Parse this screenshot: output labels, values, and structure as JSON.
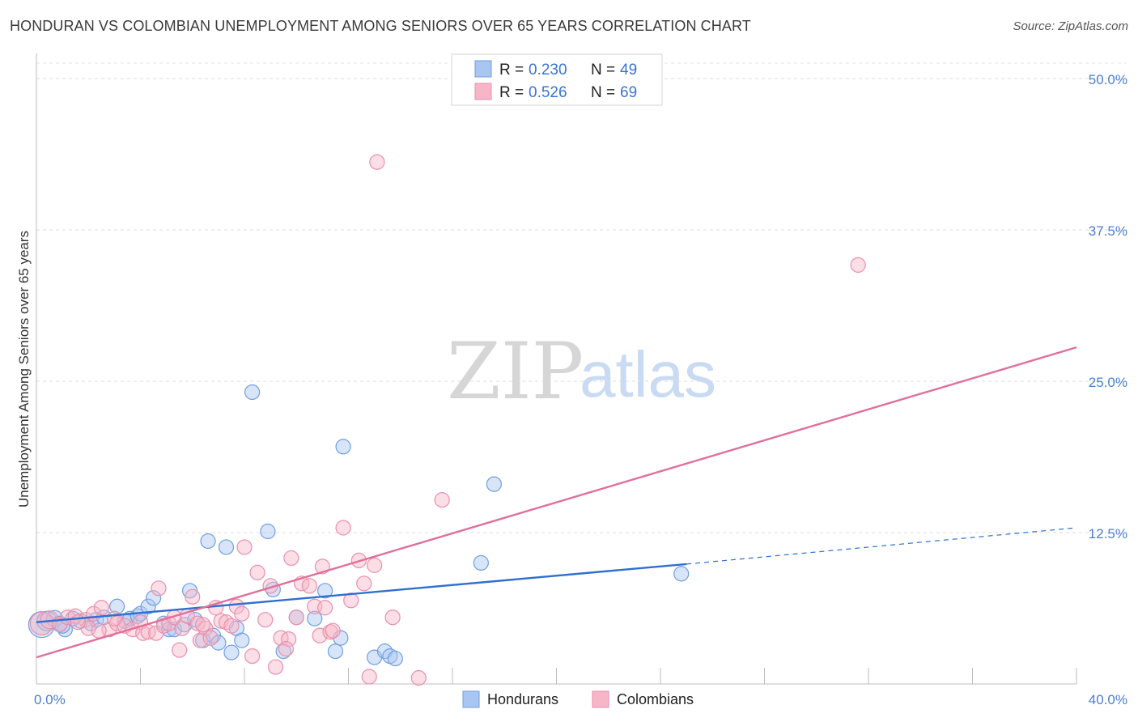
{
  "title": "HONDURAN VS COLOMBIAN UNEMPLOYMENT AMONG SENIORS OVER 65 YEARS CORRELATION CHART",
  "source": "Source: ZipAtlas.com",
  "watermark": {
    "zip": "ZIP",
    "atlas": "atlas"
  },
  "legend": {
    "rows": [
      {
        "r_label": "R =",
        "r_value": "0.230",
        "n_label": "N =",
        "n_value": "49",
        "color": "#a9c6f2"
      },
      {
        "r_label": "R =",
        "r_value": "0.526",
        "n_label": "N =",
        "n_value": "69",
        "color": "#f7b6c8"
      }
    ]
  },
  "bottom_legend": [
    {
      "label": "Hondurans",
      "color": "#a9c6f2"
    },
    {
      "label": "Colombians",
      "color": "#f7b6c8"
    }
  ],
  "chart_data": {
    "type": "scatter",
    "title": "HONDURAN VS COLOMBIAN UNEMPLOYMENT AMONG SENIORS OVER 65 YEARS CORRELATION CHART",
    "xlabel": "",
    "ylabel": "Unemployment Among Seniors over 65 years",
    "xlim": [
      0,
      40
    ],
    "ylim": [
      0,
      50
    ],
    "x_tick_labels": [
      {
        "value": 0,
        "label": "0.0%"
      },
      {
        "value": 40,
        "label": "40.0%"
      }
    ],
    "y_tick_labels": [
      {
        "value": 12.5,
        "label": "12.5%"
      },
      {
        "value": 25,
        "label": "25.0%"
      },
      {
        "value": 37.5,
        "label": "37.5%"
      },
      {
        "value": 50,
        "label": "50.0%"
      }
    ],
    "series": [
      {
        "name": "Hondurans",
        "color": "#a9c6f2",
        "stroke": "#6f9fe0",
        "line_color": "#2f6fd0",
        "trend": {
          "x0": 0,
          "y0": 5.1,
          "x1": 25,
          "y1": 9.9,
          "x_dash_end": 40,
          "y_dash_end": 12.9
        },
        "points": [
          [
            0.2,
            4.9,
            16
          ],
          [
            0.4,
            5.2,
            12
          ],
          [
            0.7,
            5.4,
            10
          ],
          [
            0.9,
            5.0,
            9
          ],
          [
            1.1,
            4.5,
            9
          ],
          [
            1.4,
            5.4,
            9
          ],
          [
            1.7,
            5.2,
            9
          ],
          [
            2.1,
            5.0,
            9
          ],
          [
            2.3,
            5.3,
            9
          ],
          [
            2.6,
            5.5,
            9
          ],
          [
            3.1,
            6.4,
            9
          ],
          [
            3.4,
            5.2,
            9
          ],
          [
            3.6,
            5.4,
            9
          ],
          [
            3.9,
            5.6,
            9
          ],
          [
            4.0,
            5.8,
            9
          ],
          [
            4.3,
            6.4,
            9
          ],
          [
            4.5,
            7.1,
            9
          ],
          [
            4.9,
            5.0,
            9
          ],
          [
            5.1,
            4.5,
            9
          ],
          [
            5.3,
            4.5,
            9
          ],
          [
            5.7,
            4.9,
            9
          ],
          [
            5.9,
            7.7,
            9
          ],
          [
            6.1,
            5.3,
            9
          ],
          [
            6.4,
            3.6,
            9
          ],
          [
            6.6,
            11.8,
            9
          ],
          [
            6.8,
            4.0,
            9
          ],
          [
            7.0,
            3.4,
            9
          ],
          [
            7.3,
            11.3,
            9
          ],
          [
            7.5,
            2.6,
            9
          ],
          [
            7.7,
            4.6,
            9
          ],
          [
            7.9,
            3.6,
            9
          ],
          [
            8.3,
            24.1,
            9
          ],
          [
            8.9,
            12.6,
            9
          ],
          [
            9.1,
            7.8,
            9
          ],
          [
            9.5,
            2.7,
            9
          ],
          [
            10.0,
            5.5,
            9
          ],
          [
            10.7,
            5.4,
            9
          ],
          [
            11.1,
            7.7,
            9
          ],
          [
            11.5,
            2.7,
            9
          ],
          [
            11.7,
            3.8,
            9
          ],
          [
            11.8,
            19.6,
            9
          ],
          [
            13.0,
            2.2,
            9
          ],
          [
            13.4,
            2.7,
            9
          ],
          [
            13.6,
            2.3,
            9
          ],
          [
            13.8,
            2.1,
            9
          ],
          [
            17.1,
            10.0,
            9
          ],
          [
            17.6,
            16.5,
            9
          ],
          [
            24.8,
            9.1,
            9
          ],
          [
            1.0,
            4.8,
            9
          ]
        ]
      },
      {
        "name": "Colombians",
        "color": "#f7b6c8",
        "stroke": "#ea8fab",
        "line_color": "#e0709a",
        "trend": {
          "x0": 0,
          "y0": 2.2,
          "x1": 40,
          "y1": 27.8
        },
        "points": [
          [
            0.2,
            5.0,
            14
          ],
          [
            0.5,
            5.3,
            11
          ],
          [
            0.9,
            4.9,
            9
          ],
          [
            1.2,
            5.5,
            9
          ],
          [
            1.5,
            5.6,
            9
          ],
          [
            1.9,
            5.3,
            9
          ],
          [
            2.2,
            5.8,
            9
          ],
          [
            2.5,
            6.3,
            9
          ],
          [
            2.8,
            4.5,
            9
          ],
          [
            3.1,
            5.0,
            9
          ],
          [
            3.4,
            4.8,
            9
          ],
          [
            3.7,
            4.5,
            9
          ],
          [
            4.0,
            5.1,
            9
          ],
          [
            4.1,
            4.2,
            9
          ],
          [
            4.3,
            4.3,
            9
          ],
          [
            4.6,
            4.2,
            9
          ],
          [
            4.7,
            7.9,
            9
          ],
          [
            4.9,
            4.8,
            9
          ],
          [
            5.1,
            5.0,
            9
          ],
          [
            5.3,
            5.5,
            9
          ],
          [
            5.5,
            2.8,
            9
          ],
          [
            5.6,
            4.6,
            9
          ],
          [
            5.8,
            5.6,
            9
          ],
          [
            6.0,
            7.2,
            9
          ],
          [
            6.2,
            5.0,
            9
          ],
          [
            6.3,
            3.6,
            9
          ],
          [
            6.5,
            4.6,
            9
          ],
          [
            6.7,
            3.8,
            9
          ],
          [
            6.9,
            6.3,
            9
          ],
          [
            7.1,
            5.2,
            9
          ],
          [
            7.3,
            5.1,
            9
          ],
          [
            7.5,
            4.8,
            9
          ],
          [
            7.7,
            6.4,
            9
          ],
          [
            7.9,
            5.8,
            9
          ],
          [
            8.0,
            11.3,
            9
          ],
          [
            8.3,
            2.3,
            9
          ],
          [
            8.5,
            9.2,
            9
          ],
          [
            8.8,
            5.3,
            9
          ],
          [
            9.0,
            8.1,
            9
          ],
          [
            9.2,
            1.4,
            9
          ],
          [
            9.4,
            3.8,
            9
          ],
          [
            9.7,
            3.7,
            9
          ],
          [
            9.8,
            10.4,
            9
          ],
          [
            10.0,
            5.5,
            9
          ],
          [
            10.2,
            8.3,
            9
          ],
          [
            10.5,
            8.1,
            9
          ],
          [
            10.7,
            6.4,
            9
          ],
          [
            10.9,
            4.0,
            9
          ],
          [
            11.0,
            9.7,
            9
          ],
          [
            11.1,
            6.3,
            9
          ],
          [
            11.3,
            4.3,
            9
          ],
          [
            11.4,
            4.4,
            9
          ],
          [
            11.8,
            12.9,
            9
          ],
          [
            12.1,
            6.9,
            9
          ],
          [
            12.4,
            10.2,
            9
          ],
          [
            12.6,
            8.3,
            9
          ],
          [
            12.8,
            0.6,
            9
          ],
          [
            13.0,
            9.8,
            9
          ],
          [
            13.1,
            43.1,
            9
          ],
          [
            13.7,
            5.5,
            9
          ],
          [
            14.7,
            0.5,
            9
          ],
          [
            15.6,
            15.2,
            9
          ],
          [
            31.6,
            34.6,
            9
          ],
          [
            2.0,
            4.6,
            9
          ],
          [
            3.0,
            5.4,
            9
          ],
          [
            6.4,
            4.9,
            9
          ],
          [
            9.6,
            2.9,
            9
          ],
          [
            1.6,
            5.1,
            9
          ],
          [
            2.4,
            4.4,
            9
          ]
        ]
      }
    ]
  }
}
